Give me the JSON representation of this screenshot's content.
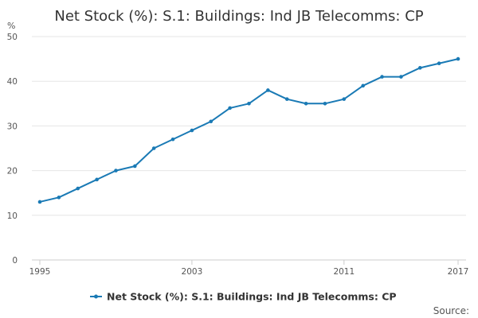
{
  "colors": {
    "series": "#1a7ab5",
    "grid": "#e6e6e6",
    "axis": "#cccccc",
    "text": "#333333"
  },
  "chart_data": {
    "type": "line",
    "title": "Net Stock (%): S.1: Buildings: Ind JB Telecomms: CP",
    "ylabel": "%",
    "xlabel": "",
    "xlim": [
      1995,
      2017
    ],
    "ylim": [
      0,
      50
    ],
    "yticks": [
      0,
      10,
      20,
      30,
      40,
      50
    ],
    "xticks": [
      1995,
      2003,
      2011,
      2017
    ],
    "grid": true,
    "legend_position": "bottom-center",
    "source_label": "Source:",
    "series": [
      {
        "name": "Net Stock (%): S.1: Buildings: Ind JB Telecomms: CP",
        "x": [
          1995,
          1996,
          1997,
          1998,
          1999,
          2000,
          2001,
          2002,
          2003,
          2004,
          2005,
          2006,
          2007,
          2008,
          2009,
          2010,
          2011,
          2012,
          2013,
          2014,
          2015,
          2016,
          2017
        ],
        "values": [
          13,
          14,
          16,
          18,
          20,
          21,
          25,
          27,
          29,
          31,
          34,
          35,
          38,
          36,
          35,
          35,
          36,
          39,
          41,
          41,
          43,
          44,
          45
        ]
      }
    ]
  }
}
